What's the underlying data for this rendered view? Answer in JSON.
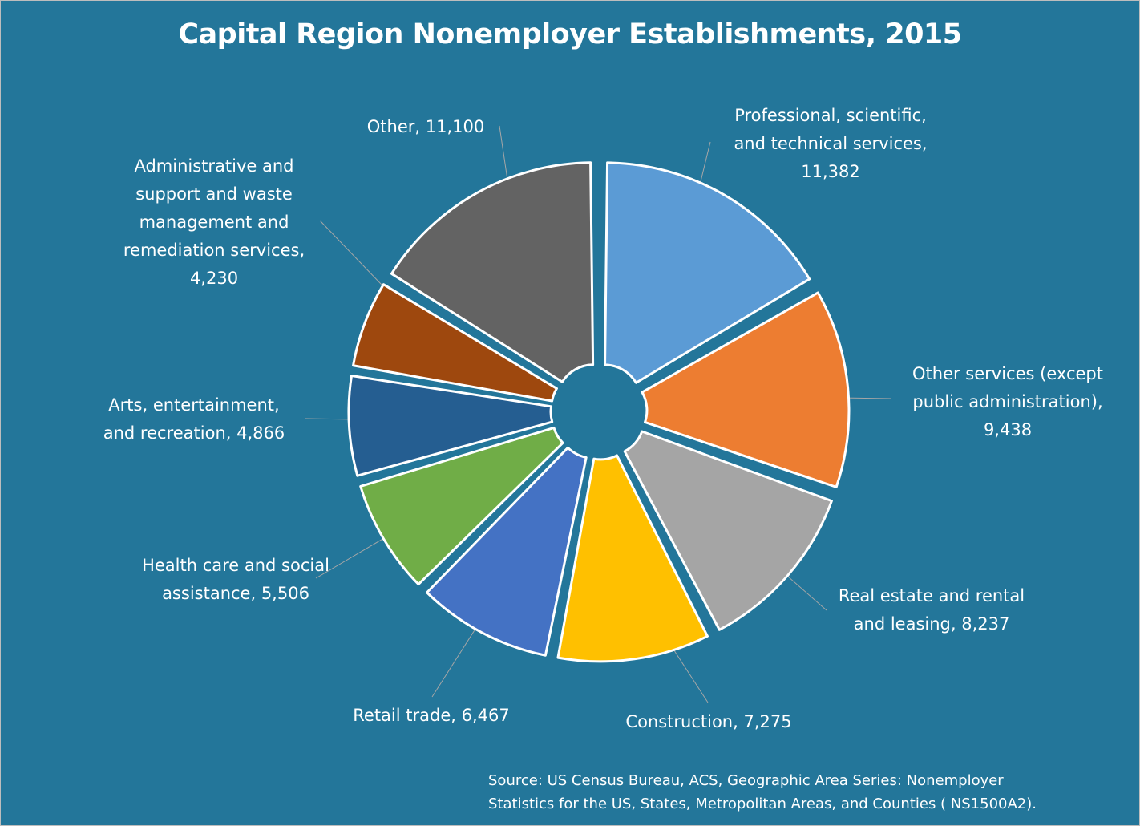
{
  "chart_data": {
    "type": "pie",
    "style": "exploded-donut",
    "title": "Capital Region Nonemployer Establishments, 2015",
    "slices": [
      {
        "label": "Professional, scientific,\nand technical services,\n11,382",
        "category": "Professional, scientific, and technical services",
        "value": 11382,
        "color": "#5b9bd5"
      },
      {
        "label": "Other services (except\npublic administration),\n9,438",
        "category": "Other services (except public administration)",
        "value": 9438,
        "color": "#ed7d31"
      },
      {
        "label": "Real estate and rental\nand leasing, 8,237",
        "category": "Real estate and rental and leasing",
        "value": 8237,
        "color": "#a5a5a5"
      },
      {
        "label": "Construction, 7,275",
        "category": "Construction",
        "value": 7275,
        "color": "#ffc000"
      },
      {
        "label": "Retail trade, 6,467",
        "category": "Retail trade",
        "value": 6467,
        "color": "#4472c4"
      },
      {
        "label": "Health care and social\nassistance, 5,506",
        "category": "Health care and social assistance",
        "value": 5506,
        "color": "#70ad47"
      },
      {
        "label": "Arts, entertainment,\nand recreation, 4,866",
        "category": "Arts, entertainment, and recreation",
        "value": 4866,
        "color": "#255e91"
      },
      {
        "label": "Administrative and\nsupport and waste\nmanagement and\nremediation services,\n4,230",
        "category": "Administrative and support and waste management and remediation services",
        "value": 4230,
        "color": "#9e480e"
      },
      {
        "label": "Other, 11,100",
        "category": "Other",
        "value": 11100,
        "color": "#636363"
      }
    ],
    "source": "Source: US Census Bureau, ACS, Geographic Area Series: Nonemployer\nStatistics for the US, States, Metropolitan Areas, and Counties ( NS1500A2).",
    "background_color": "#23769a"
  }
}
